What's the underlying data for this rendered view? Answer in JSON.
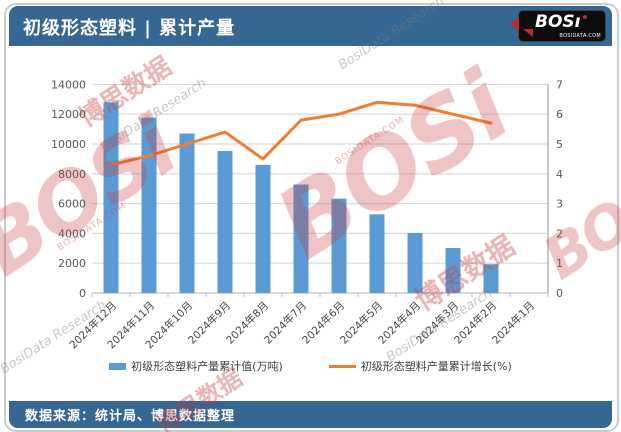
{
  "header": {
    "title": "初级形态塑料 | 累计产量",
    "logo": {
      "text_bos": "BOS",
      "text_i": "ı",
      "domain": "BOSIDATA.COM"
    }
  },
  "footer": {
    "source": "数据来源：统计局、博思数据整理"
  },
  "watermark": {
    "brand": "BOSi",
    "brand_cjk": "博思数据",
    "research": "BosiData Research",
    "domain": "BOSIDATA.COM"
  },
  "colors": {
    "header_blue": "#366793",
    "bar_blue": "#5B9BD5",
    "line_orange": "#ED7D31",
    "gridline": "#d9d9d9",
    "axis_line": "#bfbfbf",
    "axis_text": "#595959",
    "logo_red": "#c0272d"
  },
  "chart_data": {
    "type": "bar",
    "subtype": "combo-bar-line",
    "title": "初级形态塑料 | 累计产量",
    "categories": [
      "2024年12月",
      "2024年11月",
      "2024年10月",
      "2024年9月",
      "2024年8月",
      "2024年7月",
      "2024年6月",
      "2024年5月",
      "2024年4月",
      "2024年3月",
      "2024年2月",
      "2024年1月"
    ],
    "series": [
      {
        "name": "初级形态塑料产量累计值(万吨)",
        "type": "bar",
        "axis": "left",
        "color": "#5B9BD5",
        "values": [
          12800,
          11770,
          10700,
          9530,
          8600,
          7280,
          6330,
          5280,
          4030,
          3020,
          1930,
          null
        ]
      },
      {
        "name": "初级形态塑料产量累计增长(%)",
        "type": "line",
        "axis": "right",
        "color": "#ED7D31",
        "values": [
          4.3,
          4.6,
          5.0,
          5.4,
          4.5,
          5.8,
          6.0,
          6.4,
          6.3,
          6.0,
          5.7,
          null
        ]
      }
    ],
    "left_axis": {
      "min": 0,
      "max": 14000,
      "step": 2000
    },
    "right_axis": {
      "min": 0,
      "max": 7,
      "step": 1
    },
    "grid": true,
    "legend_position": "bottom",
    "x_label_rotation": -45
  }
}
